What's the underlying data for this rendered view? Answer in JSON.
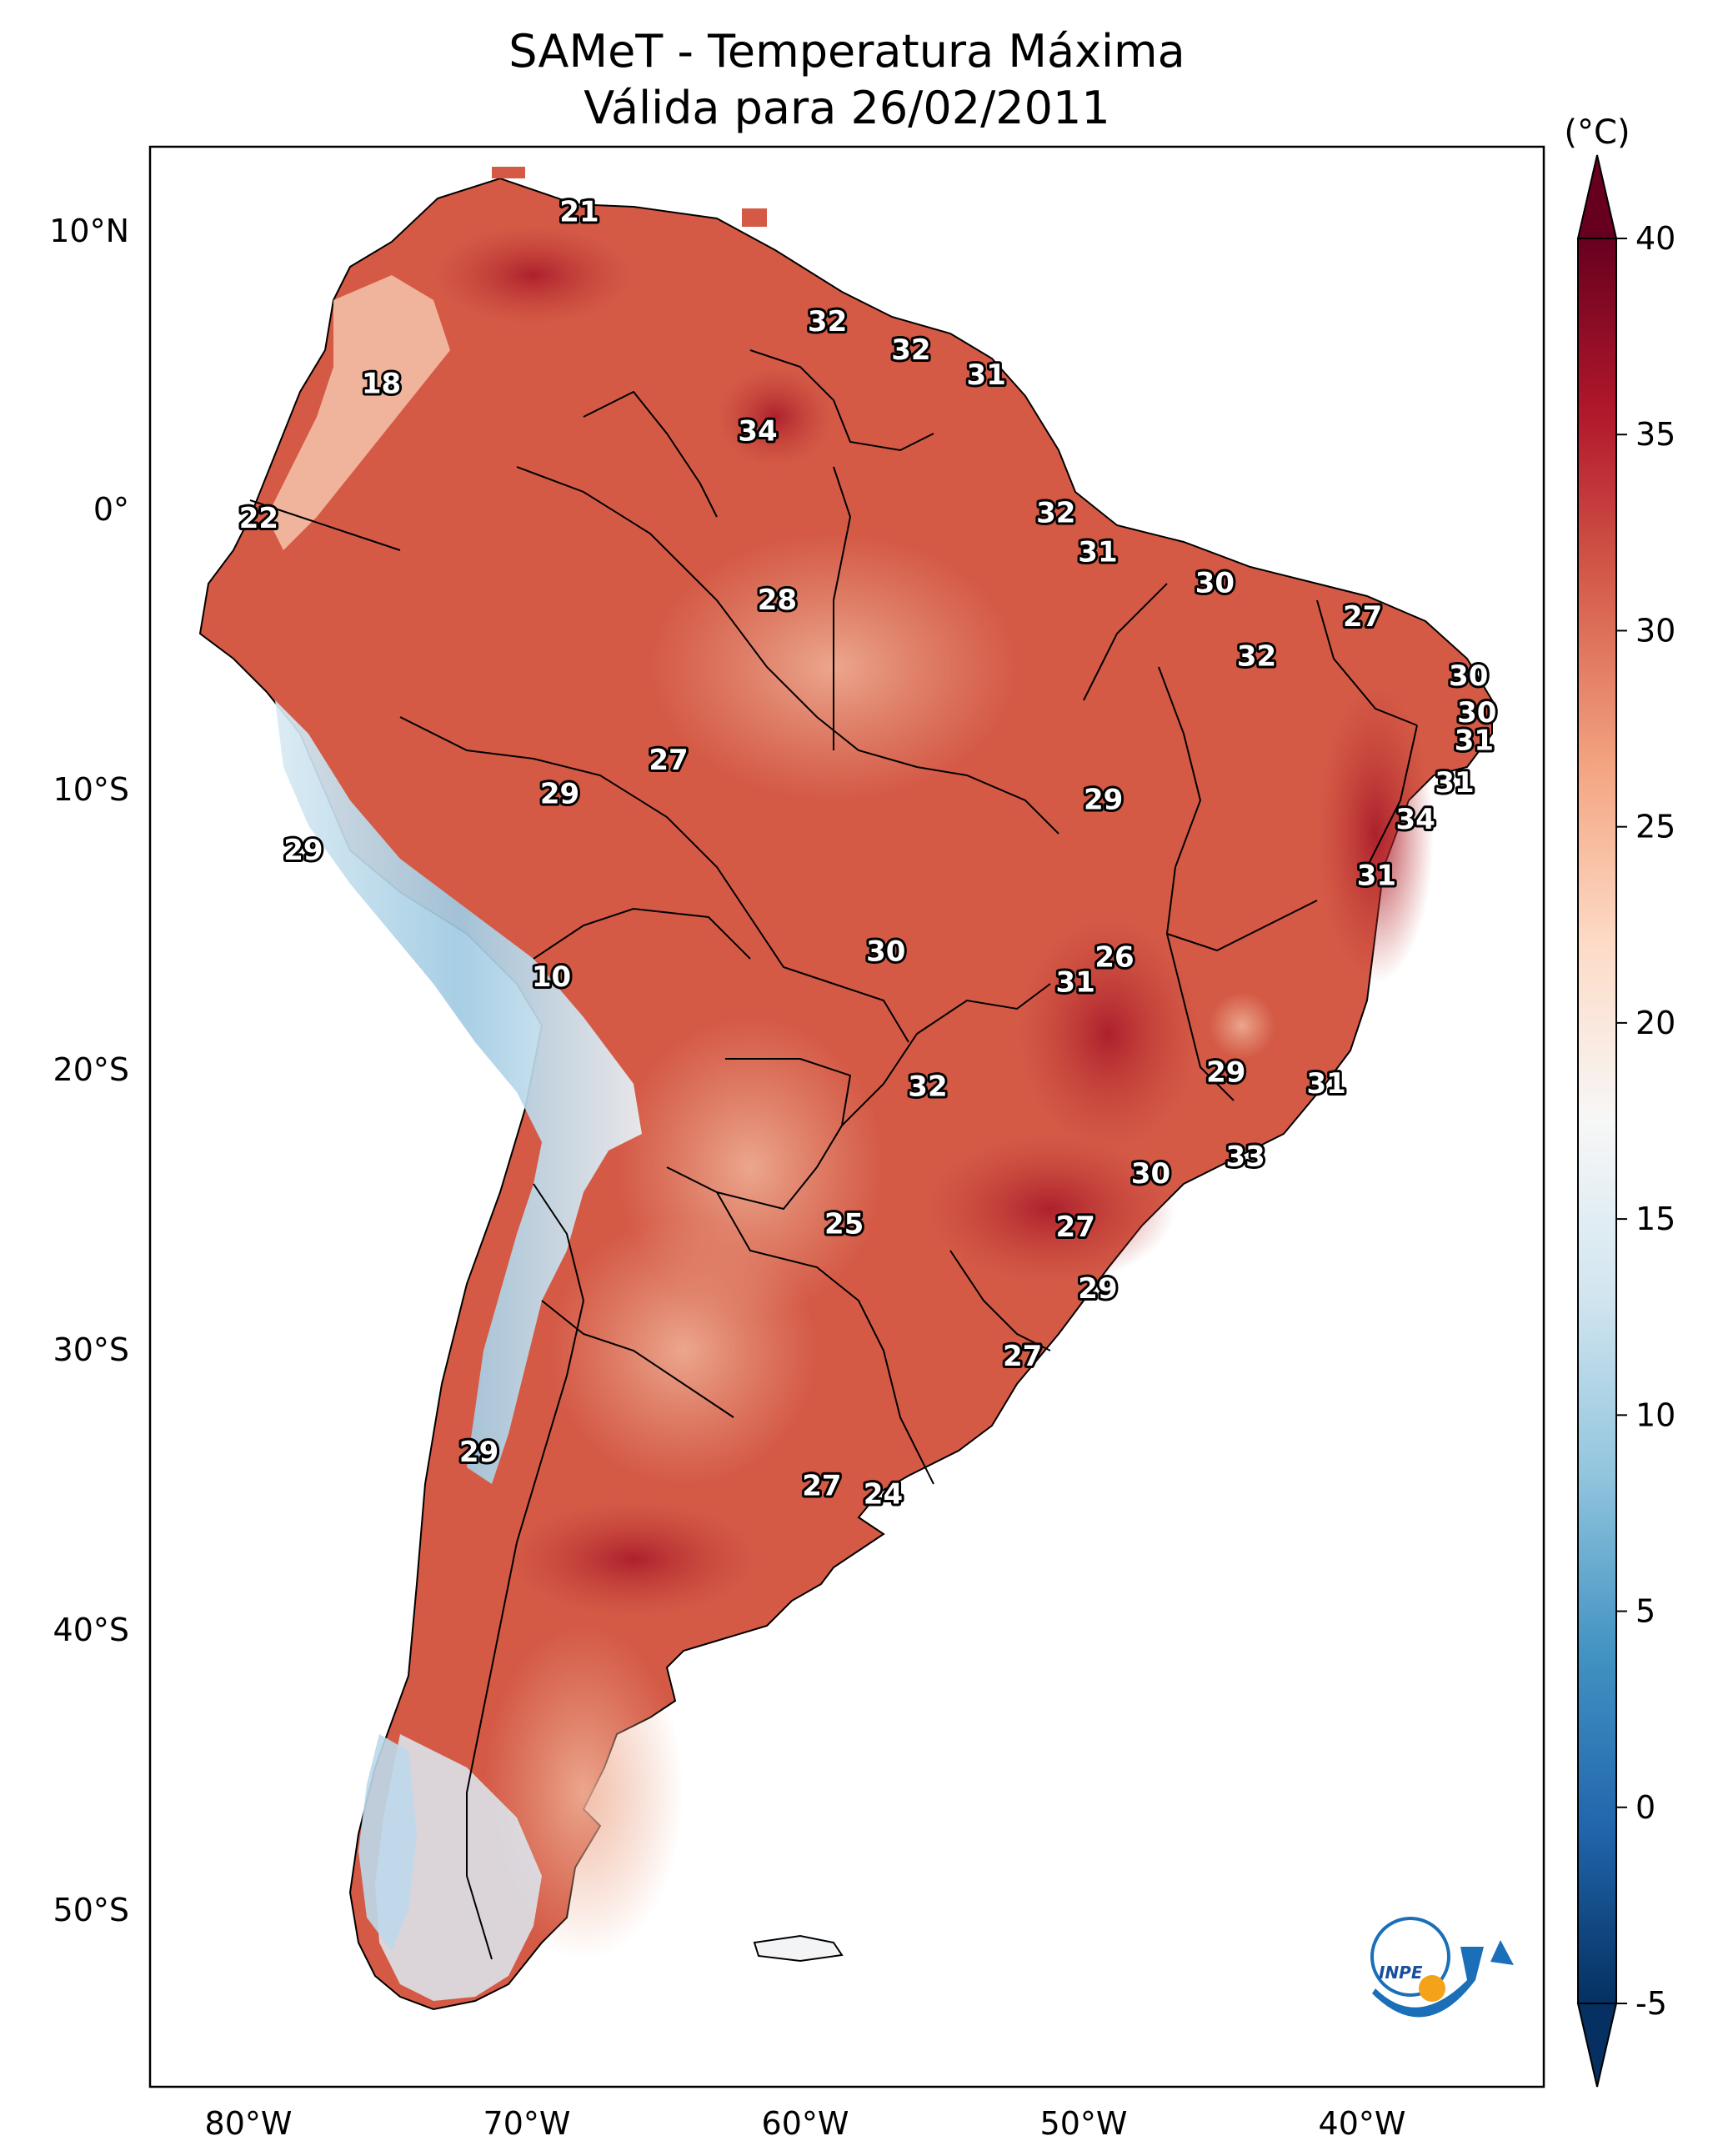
{
  "title": {
    "line1": "SAMeT - Temperatura Máxima",
    "line2": "Válida para 26/02/2011"
  },
  "colorbar": {
    "unit": "(°C)",
    "min": -5,
    "max": 40,
    "ticks": [
      "40",
      "35",
      "30",
      "25",
      "20",
      "15",
      "10",
      "5",
      "0",
      "-5"
    ],
    "colors": [
      "#053061",
      "#2166ac",
      "#4393c3",
      "#92c5de",
      "#d1e5f0",
      "#f7f7f7",
      "#fddbc7",
      "#f4a582",
      "#d6604d",
      "#b2182b",
      "#67001f"
    ]
  },
  "axes": {
    "lon_labels": [
      "80°W",
      "70°W",
      "60°W",
      "50°W",
      "40°W"
    ],
    "lat_labels": [
      "10°N",
      "0°",
      "10°S",
      "20°S",
      "30°S",
      "40°S",
      "50°S"
    ]
  },
  "map": {
    "lon_range": [
      -82.5,
      -32.5
    ],
    "lat_range": [
      -56,
      13
    ],
    "ocean_color": "#ffffff",
    "land_base_color": "#d2604a"
  },
  "logo": {
    "text": "INPE",
    "colors": [
      "#1a6fb8",
      "#f5a21b"
    ]
  },
  "city_labels": [
    {
      "value": "21",
      "lon": -67.1,
      "lat": 10.7
    },
    {
      "value": "32",
      "lon": -58.2,
      "lat": 6.8
    },
    {
      "value": "32",
      "lon": -55.2,
      "lat": 5.8
    },
    {
      "value": "31",
      "lon": -52.5,
      "lat": 4.9
    },
    {
      "value": "18",
      "lon": -74.2,
      "lat": 4.6
    },
    {
      "value": "34",
      "lon": -60.7,
      "lat": 2.9
    },
    {
      "value": "32",
      "lon": -50.0,
      "lat": 0.0
    },
    {
      "value": "22",
      "lon": -78.6,
      "lat": -0.2
    },
    {
      "value": "31",
      "lon": -48.5,
      "lat": -1.4
    },
    {
      "value": "30",
      "lon": -44.3,
      "lat": -2.5
    },
    {
      "value": "28",
      "lon": -60.0,
      "lat": -3.1
    },
    {
      "value": "27",
      "lon": -39.0,
      "lat": -3.7
    },
    {
      "value": "32",
      "lon": -42.8,
      "lat": -5.1
    },
    {
      "value": "30",
      "lon": -35.2,
      "lat": -5.8
    },
    {
      "value": "30",
      "lon": -34.9,
      "lat": -7.1
    },
    {
      "value": "31",
      "lon": -35.0,
      "lat": -8.1
    },
    {
      "value": "27",
      "lon": -63.9,
      "lat": -8.8
    },
    {
      "value": "31",
      "lon": -35.7,
      "lat": -9.6
    },
    {
      "value": "29",
      "lon": -67.8,
      "lat": -10.0
    },
    {
      "value": "29",
      "lon": -48.3,
      "lat": -10.2
    },
    {
      "value": "34",
      "lon": -37.1,
      "lat": -10.9
    },
    {
      "value": "29",
      "lon": -77.0,
      "lat": -12.0
    },
    {
      "value": "31",
      "lon": -38.5,
      "lat": -12.9
    },
    {
      "value": "26",
      "lon": -47.9,
      "lat": -15.8
    },
    {
      "value": "30",
      "lon": -56.1,
      "lat": -15.6
    },
    {
      "value": "10",
      "lon": -68.1,
      "lat": -16.5
    },
    {
      "value": "31",
      "lon": -49.3,
      "lat": -16.7
    },
    {
      "value": "29",
      "lon": -43.9,
      "lat": -19.9
    },
    {
      "value": "32",
      "lon": -54.6,
      "lat": -20.4
    },
    {
      "value": "31",
      "lon": -40.3,
      "lat": -20.3
    },
    {
      "value": "33",
      "lon": -43.2,
      "lat": -22.9
    },
    {
      "value": "30",
      "lon": -46.6,
      "lat": -23.5
    },
    {
      "value": "25",
      "lon": -57.6,
      "lat": -25.3
    },
    {
      "value": "27",
      "lon": -49.3,
      "lat": -25.4
    },
    {
      "value": "29",
      "lon": -48.5,
      "lat": -27.6
    },
    {
      "value": "27",
      "lon": -51.2,
      "lat": -30.0
    },
    {
      "value": "29",
      "lon": -70.7,
      "lat": -33.4
    },
    {
      "value": "27",
      "lon": -58.4,
      "lat": -34.6
    },
    {
      "value": "24",
      "lon": -56.2,
      "lat": -34.9
    }
  ]
}
